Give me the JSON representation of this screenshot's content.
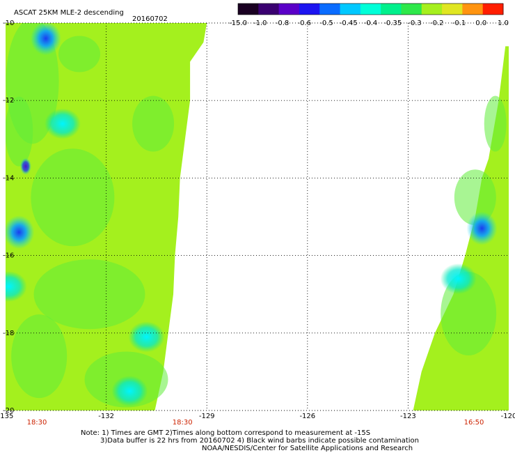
{
  "header": {
    "title": "ASCAT 25KM MLE-2 descending",
    "date": "20160702"
  },
  "colorbar": {
    "labels": [
      "-15.0",
      "-1.0",
      "-0.8",
      "-0.6",
      "-0.5",
      "-0.45",
      "-0.4",
      "-0.35",
      "-0.3",
      "-0.2",
      "-0.1",
      "0.0",
      "1.0"
    ],
    "colors": [
      "#1a0022",
      "#3a0070",
      "#5a00c8",
      "#1c14f0",
      "#0a6cff",
      "#00c8ff",
      "#00ffd8",
      "#00f08c",
      "#2ee84a",
      "#a6ef1e",
      "#e0e622",
      "#ff9410",
      "#ff1e00"
    ]
  },
  "chart_data": {
    "type": "heatmap",
    "title": "ASCAT 25KM MLE-2 descending",
    "subtitle": "20160702",
    "x_ticks": [
      "-135",
      "-132",
      "-129",
      "-126",
      "-123",
      "-120"
    ],
    "y_ticks": [
      "-10",
      "-12",
      "-14",
      "-16",
      "-18",
      "-20"
    ],
    "xlim": [
      -135,
      -120
    ],
    "ylim": [
      -20,
      -10
    ],
    "grid": true,
    "time_labels": [
      {
        "lon": -135,
        "text": "18:30"
      },
      {
        "lon": -129,
        "text": "18:30"
      },
      {
        "lon": -120,
        "text": "16:50"
      }
    ],
    "swaths": [
      {
        "name": "west",
        "lon_min": -135,
        "lat_range": [
          -20,
          -10
        ],
        "east_edge": [
          {
            "lat": -10,
            "lon": -129.0
          },
          {
            "lat": -10.5,
            "lon": -129.1
          },
          {
            "lat": -11,
            "lon": -129.5
          },
          {
            "lat": -12,
            "lon": -129.5
          },
          {
            "lat": -13,
            "lon": -129.65
          },
          {
            "lat": -14,
            "lon": -129.8
          },
          {
            "lat": -15,
            "lon": -129.85
          },
          {
            "lat": -16,
            "lon": -129.95
          },
          {
            "lat": -17,
            "lon": -130.0
          },
          {
            "lat": -18,
            "lon": -130.15
          },
          {
            "lat": -19,
            "lon": -130.3
          },
          {
            "lat": -20,
            "lon": -130.55
          }
        ]
      },
      {
        "name": "east",
        "lon_max": -120,
        "lat_range": [
          -20,
          -10.6
        ],
        "west_edge": [
          {
            "lat": -10.6,
            "lon": -120.1
          },
          {
            "lat": -12,
            "lon": -120.3
          },
          {
            "lat": -13.5,
            "lon": -120.6
          },
          {
            "lat": -14,
            "lon": -120.8
          },
          {
            "lat": -15,
            "lon": -121.0
          },
          {
            "lat": -16,
            "lon": -121.3
          },
          {
            "lat": -17,
            "lon": -121.65
          },
          {
            "lat": -18,
            "lon": -122.2
          },
          {
            "lat": -19,
            "lon": -122.6
          },
          {
            "lat": -20,
            "lon": -122.85
          }
        ]
      }
    ],
    "features": [
      {
        "lon": -133.8,
        "lat": -10.4,
        "value": -0.5
      },
      {
        "lon": -133.3,
        "lat": -12.6,
        "value": -0.4
      },
      {
        "lon": -134.4,
        "lat": -13.7,
        "value": -0.8
      },
      {
        "lon": -134.6,
        "lat": -15.4,
        "value": -0.5
      },
      {
        "lon": -134.9,
        "lat": -16.8,
        "value": -0.4
      },
      {
        "lon": -130.8,
        "lat": -18.1,
        "value": -0.45
      },
      {
        "lon": -131.3,
        "lat": -19.5,
        "value": -0.45
      },
      {
        "lon": -120.8,
        "lat": -15.3,
        "value": -0.5
      },
      {
        "lon": -121.5,
        "lat": -16.6,
        "value": -0.4
      }
    ]
  },
  "footer": {
    "line1": "Note: 1) Times are GMT 2)Times along bottom correspond to measurement at -15S",
    "line2": "3)Data buffer is 22 hrs from 20160702 4) Black wind barbs indicate possible contamination",
    "line3": "NOAA/NESDIS/Center for Satellite Applications and Research"
  }
}
